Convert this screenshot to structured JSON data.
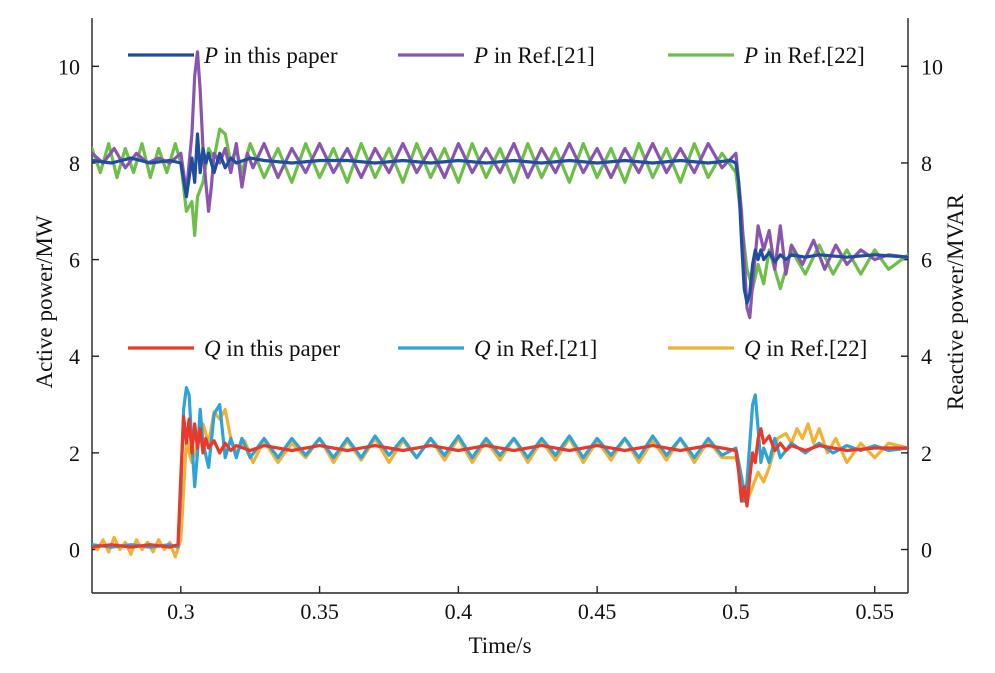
{
  "chart_data": {
    "type": "line",
    "xlabel": "Time/s",
    "ylabel_left": "Active power/MW",
    "ylabel_right": "Reactive power/MVAR",
    "xlim": [
      0.268,
      0.562
    ],
    "ylim": [
      -0.9,
      11.0
    ],
    "x_ticks": [
      0.3,
      0.35,
      0.4,
      0.45,
      0.5,
      0.55
    ],
    "x_tick_labels": [
      "0.3",
      "0.35",
      "0.4",
      "0.45",
      "0.5",
      "0.55"
    ],
    "y_ticks": [
      0,
      2,
      4,
      6,
      8,
      10
    ],
    "y_tick_labels": [
      "0",
      "2",
      "4",
      "6",
      "8",
      "10"
    ],
    "grid": false,
    "legend_placement": "top (two rows, inside plot)",
    "series": [
      {
        "name": "P in this paper",
        "symbol": "P",
        "suffix": " in this paper",
        "color": "#1f4e9c",
        "x": [
          0.268,
          0.275,
          0.282,
          0.289,
          0.296,
          0.3,
          0.302,
          0.304,
          0.305,
          0.306,
          0.307,
          0.308,
          0.309,
          0.31,
          0.312,
          0.314,
          0.316,
          0.318,
          0.32,
          0.325,
          0.33,
          0.34,
          0.35,
          0.36,
          0.37,
          0.38,
          0.39,
          0.4,
          0.41,
          0.42,
          0.43,
          0.44,
          0.45,
          0.46,
          0.47,
          0.48,
          0.49,
          0.498,
          0.5,
          0.501,
          0.502,
          0.503,
          0.504,
          0.505,
          0.506,
          0.507,
          0.508,
          0.509,
          0.51,
          0.512,
          0.514,
          0.516,
          0.518,
          0.52,
          0.525,
          0.53,
          0.54,
          0.55,
          0.562
        ],
        "y": [
          8.05,
          8.0,
          8.1,
          8.0,
          8.05,
          8.0,
          7.3,
          8.1,
          7.6,
          8.6,
          7.8,
          8.3,
          8.0,
          8.2,
          7.8,
          8.2,
          7.9,
          8.1,
          8.0,
          8.1,
          8.05,
          8.0,
          8.05,
          8.05,
          8.0,
          8.05,
          8.0,
          8.05,
          8.0,
          8.05,
          8.0,
          8.05,
          8.0,
          8.05,
          8.0,
          8.05,
          8.0,
          8.05,
          8.0,
          7.6,
          6.4,
          5.4,
          5.1,
          5.3,
          5.9,
          6.2,
          6.0,
          6.2,
          6.0,
          6.15,
          5.95,
          6.1,
          6.0,
          6.1,
          6.05,
          6.1,
          6.05,
          6.1,
          6.05
        ]
      },
      {
        "name": "P in Ref.[21]",
        "symbol": "P",
        "suffix": " in Ref.[21]",
        "color": "#8a55b0",
        "x": [
          0.268,
          0.272,
          0.276,
          0.28,
          0.284,
          0.288,
          0.292,
          0.296,
          0.3,
          0.302,
          0.304,
          0.305,
          0.306,
          0.307,
          0.308,
          0.309,
          0.31,
          0.311,
          0.312,
          0.314,
          0.316,
          0.318,
          0.32,
          0.322,
          0.324,
          0.326,
          0.33,
          0.335,
          0.34,
          0.345,
          0.35,
          0.355,
          0.36,
          0.365,
          0.37,
          0.375,
          0.38,
          0.385,
          0.39,
          0.395,
          0.4,
          0.405,
          0.41,
          0.415,
          0.42,
          0.425,
          0.43,
          0.435,
          0.44,
          0.445,
          0.45,
          0.455,
          0.46,
          0.465,
          0.47,
          0.475,
          0.48,
          0.485,
          0.49,
          0.495,
          0.5,
          0.502,
          0.504,
          0.505,
          0.506,
          0.508,
          0.51,
          0.512,
          0.514,
          0.516,
          0.518,
          0.52,
          0.524,
          0.528,
          0.532,
          0.536,
          0.54,
          0.545,
          0.55,
          0.555,
          0.562
        ],
        "y": [
          8.2,
          8.0,
          8.3,
          7.9,
          8.2,
          8.0,
          8.1,
          8.0,
          8.2,
          7.4,
          8.6,
          9.8,
          10.3,
          9.5,
          8.3,
          7.6,
          7.0,
          7.5,
          8.2,
          8.0,
          8.3,
          7.8,
          8.4,
          7.5,
          8.2,
          7.9,
          8.4,
          7.7,
          8.3,
          7.8,
          8.4,
          7.8,
          8.3,
          7.7,
          8.3,
          7.8,
          8.4,
          7.8,
          8.3,
          7.7,
          8.4,
          7.8,
          8.3,
          7.8,
          8.4,
          7.7,
          8.3,
          7.8,
          8.4,
          7.8,
          8.3,
          7.7,
          8.3,
          7.8,
          8.4,
          7.8,
          8.3,
          7.8,
          8.4,
          7.9,
          8.2,
          7.0,
          5.0,
          4.8,
          5.5,
          6.7,
          6.2,
          6.6,
          5.8,
          6.7,
          5.7,
          6.3,
          5.9,
          6.4,
          5.8,
          6.3,
          5.9,
          6.2,
          6.0,
          6.1,
          6.05
        ]
      },
      {
        "name": "P in Ref.[22]",
        "symbol": "P",
        "suffix": " in Ref.[22]",
        "color": "#6cbf47",
        "x": [
          0.268,
          0.271,
          0.274,
          0.277,
          0.28,
          0.283,
          0.286,
          0.289,
          0.292,
          0.295,
          0.298,
          0.3,
          0.302,
          0.304,
          0.305,
          0.306,
          0.308,
          0.31,
          0.312,
          0.314,
          0.316,
          0.318,
          0.32,
          0.322,
          0.325,
          0.33,
          0.335,
          0.34,
          0.345,
          0.35,
          0.355,
          0.36,
          0.365,
          0.37,
          0.375,
          0.38,
          0.385,
          0.39,
          0.395,
          0.4,
          0.405,
          0.41,
          0.415,
          0.42,
          0.425,
          0.43,
          0.435,
          0.44,
          0.445,
          0.45,
          0.455,
          0.46,
          0.465,
          0.47,
          0.475,
          0.48,
          0.485,
          0.49,
          0.495,
          0.5,
          0.502,
          0.504,
          0.506,
          0.508,
          0.51,
          0.512,
          0.514,
          0.516,
          0.52,
          0.525,
          0.53,
          0.535,
          0.54,
          0.545,
          0.55,
          0.555,
          0.562
        ],
        "y": [
          8.3,
          7.8,
          8.4,
          7.7,
          8.3,
          7.8,
          8.4,
          7.7,
          8.3,
          7.8,
          8.4,
          8.0,
          7.0,
          7.2,
          6.5,
          7.3,
          7.6,
          8.3,
          8.1,
          8.7,
          8.6,
          8.0,
          8.3,
          7.8,
          8.4,
          7.7,
          8.3,
          7.6,
          8.4,
          7.7,
          8.3,
          7.6,
          8.4,
          7.7,
          8.3,
          7.6,
          8.4,
          7.7,
          8.3,
          7.6,
          8.4,
          7.7,
          8.3,
          7.6,
          8.4,
          7.7,
          8.3,
          7.6,
          8.4,
          7.7,
          8.3,
          7.6,
          8.4,
          7.7,
          8.3,
          7.6,
          8.4,
          7.7,
          8.2,
          7.8,
          6.8,
          5.8,
          5.4,
          5.9,
          5.5,
          6.2,
          5.8,
          5.4,
          6.2,
          5.7,
          6.3,
          5.7,
          6.2,
          5.7,
          6.2,
          5.8,
          6.1
        ]
      },
      {
        "name": "Q in this paper",
        "symbol": "Q",
        "suffix": " in this paper",
        "color": "#e8392a",
        "x": [
          0.268,
          0.275,
          0.282,
          0.289,
          0.296,
          0.299,
          0.3,
          0.301,
          0.302,
          0.303,
          0.304,
          0.305,
          0.306,
          0.307,
          0.308,
          0.309,
          0.31,
          0.312,
          0.314,
          0.316,
          0.318,
          0.32,
          0.325,
          0.33,
          0.34,
          0.35,
          0.36,
          0.37,
          0.38,
          0.39,
          0.4,
          0.41,
          0.42,
          0.43,
          0.44,
          0.45,
          0.46,
          0.47,
          0.48,
          0.49,
          0.5,
          0.501,
          0.502,
          0.503,
          0.504,
          0.505,
          0.506,
          0.507,
          0.508,
          0.509,
          0.51,
          0.512,
          0.514,
          0.516,
          0.518,
          0.52,
          0.525,
          0.53,
          0.54,
          0.55,
          0.562
        ],
        "y": [
          0.05,
          0.1,
          0.05,
          0.1,
          0.05,
          0.1,
          1.5,
          2.75,
          2.2,
          2.7,
          2.0,
          2.6,
          2.1,
          2.5,
          2.0,
          2.3,
          2.1,
          2.25,
          2.0,
          2.2,
          2.05,
          2.15,
          2.05,
          2.15,
          2.05,
          2.15,
          2.05,
          2.15,
          2.05,
          2.15,
          2.05,
          2.15,
          2.05,
          2.15,
          2.05,
          2.15,
          2.05,
          2.15,
          2.05,
          2.15,
          2.05,
          1.6,
          1.0,
          1.3,
          0.9,
          1.5,
          2.0,
          1.8,
          2.3,
          2.5,
          2.2,
          2.35,
          2.05,
          2.2,
          2.05,
          2.15,
          2.05,
          2.15,
          2.05,
          2.1,
          2.1
        ]
      },
      {
        "name": "Q in Ref.[21]",
        "symbol": "Q",
        "suffix": " in Ref.[21]",
        "color": "#2ea3d8",
        "x": [
          0.268,
          0.275,
          0.282,
          0.289,
          0.296,
          0.299,
          0.3,
          0.301,
          0.302,
          0.303,
          0.304,
          0.305,
          0.306,
          0.307,
          0.308,
          0.31,
          0.312,
          0.314,
          0.316,
          0.318,
          0.32,
          0.322,
          0.325,
          0.33,
          0.335,
          0.34,
          0.345,
          0.35,
          0.355,
          0.36,
          0.365,
          0.37,
          0.375,
          0.38,
          0.385,
          0.39,
          0.395,
          0.4,
          0.405,
          0.41,
          0.415,
          0.42,
          0.425,
          0.43,
          0.435,
          0.44,
          0.445,
          0.45,
          0.455,
          0.46,
          0.465,
          0.47,
          0.475,
          0.48,
          0.485,
          0.49,
          0.495,
          0.5,
          0.502,
          0.503,
          0.504,
          0.505,
          0.506,
          0.507,
          0.508,
          0.509,
          0.51,
          0.512,
          0.514,
          0.516,
          0.52,
          0.525,
          0.53,
          0.535,
          0.54,
          0.545,
          0.55,
          0.555,
          0.562
        ],
        "y": [
          0.1,
          0.05,
          0.1,
          0.05,
          0.1,
          0.05,
          1.2,
          2.9,
          3.35,
          3.2,
          2.2,
          1.3,
          2.0,
          2.9,
          2.2,
          1.7,
          2.8,
          3.0,
          1.9,
          2.3,
          1.9,
          2.3,
          1.9,
          2.3,
          1.9,
          2.3,
          1.95,
          2.3,
          1.9,
          2.3,
          1.9,
          2.35,
          1.95,
          2.3,
          1.9,
          2.3,
          1.95,
          2.35,
          1.9,
          2.3,
          1.95,
          2.3,
          1.9,
          2.3,
          1.95,
          2.35,
          1.9,
          2.3,
          1.95,
          2.3,
          1.9,
          2.35,
          1.95,
          2.3,
          1.9,
          2.3,
          1.95,
          2.1,
          1.5,
          1.0,
          1.4,
          2.2,
          3.0,
          3.2,
          2.5,
          1.8,
          2.1,
          1.8,
          2.3,
          1.9,
          2.2,
          2.0,
          2.2,
          2.0,
          2.15,
          2.05,
          2.15,
          2.05,
          2.1
        ]
      },
      {
        "name": "Q in Ref.[22]",
        "symbol": "Q",
        "suffix": " in Ref.[22]",
        "color": "#f2b134",
        "x": [
          0.268,
          0.27,
          0.272,
          0.274,
          0.276,
          0.278,
          0.28,
          0.282,
          0.284,
          0.286,
          0.288,
          0.29,
          0.292,
          0.294,
          0.296,
          0.298,
          0.3,
          0.301,
          0.302,
          0.303,
          0.304,
          0.306,
          0.308,
          0.31,
          0.312,
          0.314,
          0.316,
          0.318,
          0.32,
          0.323,
          0.326,
          0.33,
          0.335,
          0.34,
          0.345,
          0.35,
          0.355,
          0.36,
          0.365,
          0.37,
          0.375,
          0.38,
          0.385,
          0.39,
          0.395,
          0.4,
          0.405,
          0.41,
          0.415,
          0.42,
          0.425,
          0.43,
          0.435,
          0.44,
          0.445,
          0.45,
          0.455,
          0.46,
          0.465,
          0.47,
          0.475,
          0.48,
          0.485,
          0.49,
          0.495,
          0.5,
          0.502,
          0.504,
          0.506,
          0.508,
          0.51,
          0.512,
          0.515,
          0.518,
          0.52,
          0.522,
          0.524,
          0.526,
          0.528,
          0.53,
          0.533,
          0.536,
          0.54,
          0.545,
          0.55,
          0.555,
          0.562
        ],
        "y": [
          0.1,
          0.0,
          0.2,
          -0.05,
          0.25,
          0.0,
          0.15,
          -0.1,
          0.2,
          0.0,
          0.15,
          -0.05,
          0.2,
          0.0,
          0.15,
          -0.15,
          0.2,
          1.2,
          2.3,
          2.0,
          1.8,
          2.2,
          2.6,
          2.2,
          2.85,
          2.7,
          2.9,
          2.3,
          2.0,
          2.25,
          1.8,
          2.25,
          1.8,
          2.2,
          1.9,
          2.3,
          1.8,
          2.25,
          1.85,
          2.3,
          1.8,
          2.25,
          1.9,
          2.3,
          1.85,
          2.3,
          1.8,
          2.25,
          1.85,
          2.3,
          1.8,
          2.25,
          1.85,
          2.3,
          1.8,
          2.25,
          1.85,
          2.3,
          1.8,
          2.25,
          1.85,
          2.3,
          1.8,
          2.25,
          1.9,
          1.9,
          1.5,
          1.0,
          1.3,
          1.6,
          1.4,
          1.7,
          2.3,
          2.4,
          2.2,
          2.5,
          2.3,
          2.6,
          2.2,
          2.5,
          2.0,
          2.3,
          1.8,
          2.2,
          1.9,
          2.2,
          2.1
        ]
      }
    ]
  }
}
